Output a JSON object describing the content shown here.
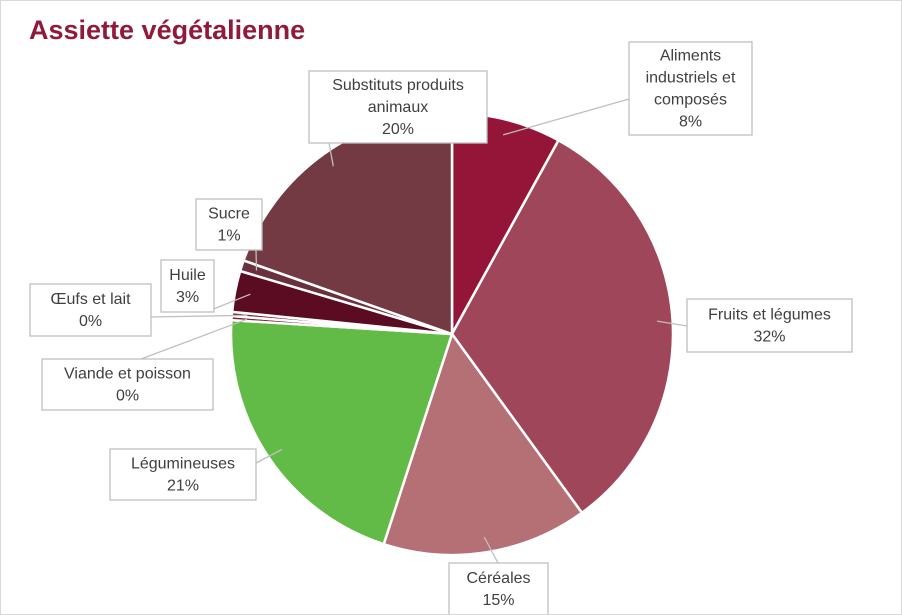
{
  "title": "Assiette végétalienne",
  "chart_data": {
    "type": "pie",
    "title": "Assiette végétalienne",
    "slices": [
      {
        "label": "Aliments industriels et composés",
        "value": 8,
        "value_label": "8%",
        "color": "#951539"
      },
      {
        "label": "Fruits et légumes",
        "value": 32,
        "value_label": "32%",
        "color": "#a0465a"
      },
      {
        "label": "Céréales",
        "value": 15,
        "value_label": "15%",
        "color": "#b57076"
      },
      {
        "label": "Légumineuses",
        "value": 21,
        "value_label": "21%",
        "color": "#63bb47"
      },
      {
        "label": "Viande et poisson",
        "value": 0,
        "value_label": "0%",
        "color": "#7a2436"
      },
      {
        "label": "Œufs et lait",
        "value": 0,
        "value_label": "0%",
        "color": "#7a2436"
      },
      {
        "label": "Huile",
        "value": 3,
        "value_label": "3%",
        "color": "#5c0c22"
      },
      {
        "label": "Sucre",
        "value": 1,
        "value_label": "1%",
        "color": "#6a3040"
      },
      {
        "label": "Substituts produits animaux",
        "value": 20,
        "value_label": "20%",
        "color": "#733a43"
      }
    ],
    "label_lines": [
      [
        "Aliments",
        "industriels et",
        "composés",
        "8%"
      ],
      [
        "Fruits et légumes",
        "32%"
      ],
      [
        "Céréales",
        "15%"
      ],
      [
        "Légumineuses",
        "21%"
      ],
      [
        "Viande et poisson",
        "0%"
      ],
      [
        "Œufs et lait",
        "0%"
      ],
      [
        "Huile",
        "3%"
      ],
      [
        "Sucre",
        "1%"
      ],
      [
        "Substituts produits",
        "animaux",
        "20%"
      ]
    ]
  }
}
